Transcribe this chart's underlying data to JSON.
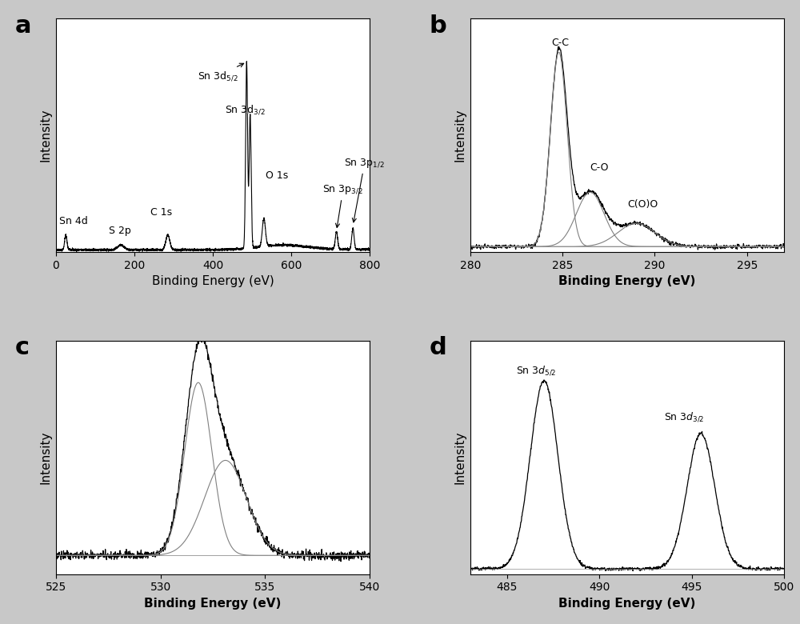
{
  "fig_width": 10.0,
  "fig_height": 7.8,
  "bg_color": "#c8c8c8",
  "panel_bg": "#ffffff",
  "panel_labels": [
    "a",
    "b",
    "c",
    "d"
  ],
  "panel_label_fontsize": 22,
  "axis_label": "Binding Energy (eV)",
  "ylabel": "Intensity",
  "tick_fontsize": 10,
  "label_fontsize": 11,
  "annot_fontsize": 9,
  "a_xlim": [
    0,
    800
  ],
  "a_xticks": [
    0,
    200,
    400,
    600,
    800
  ],
  "b_xlim": [
    280,
    297
  ],
  "b_xticks": [
    280,
    285,
    290,
    295
  ],
  "c_xlim": [
    525,
    540
  ],
  "c_xticks": [
    525,
    530,
    535,
    540
  ],
  "d_xlim": [
    483,
    500
  ],
  "d_xticks": [
    485,
    490,
    495,
    500
  ]
}
